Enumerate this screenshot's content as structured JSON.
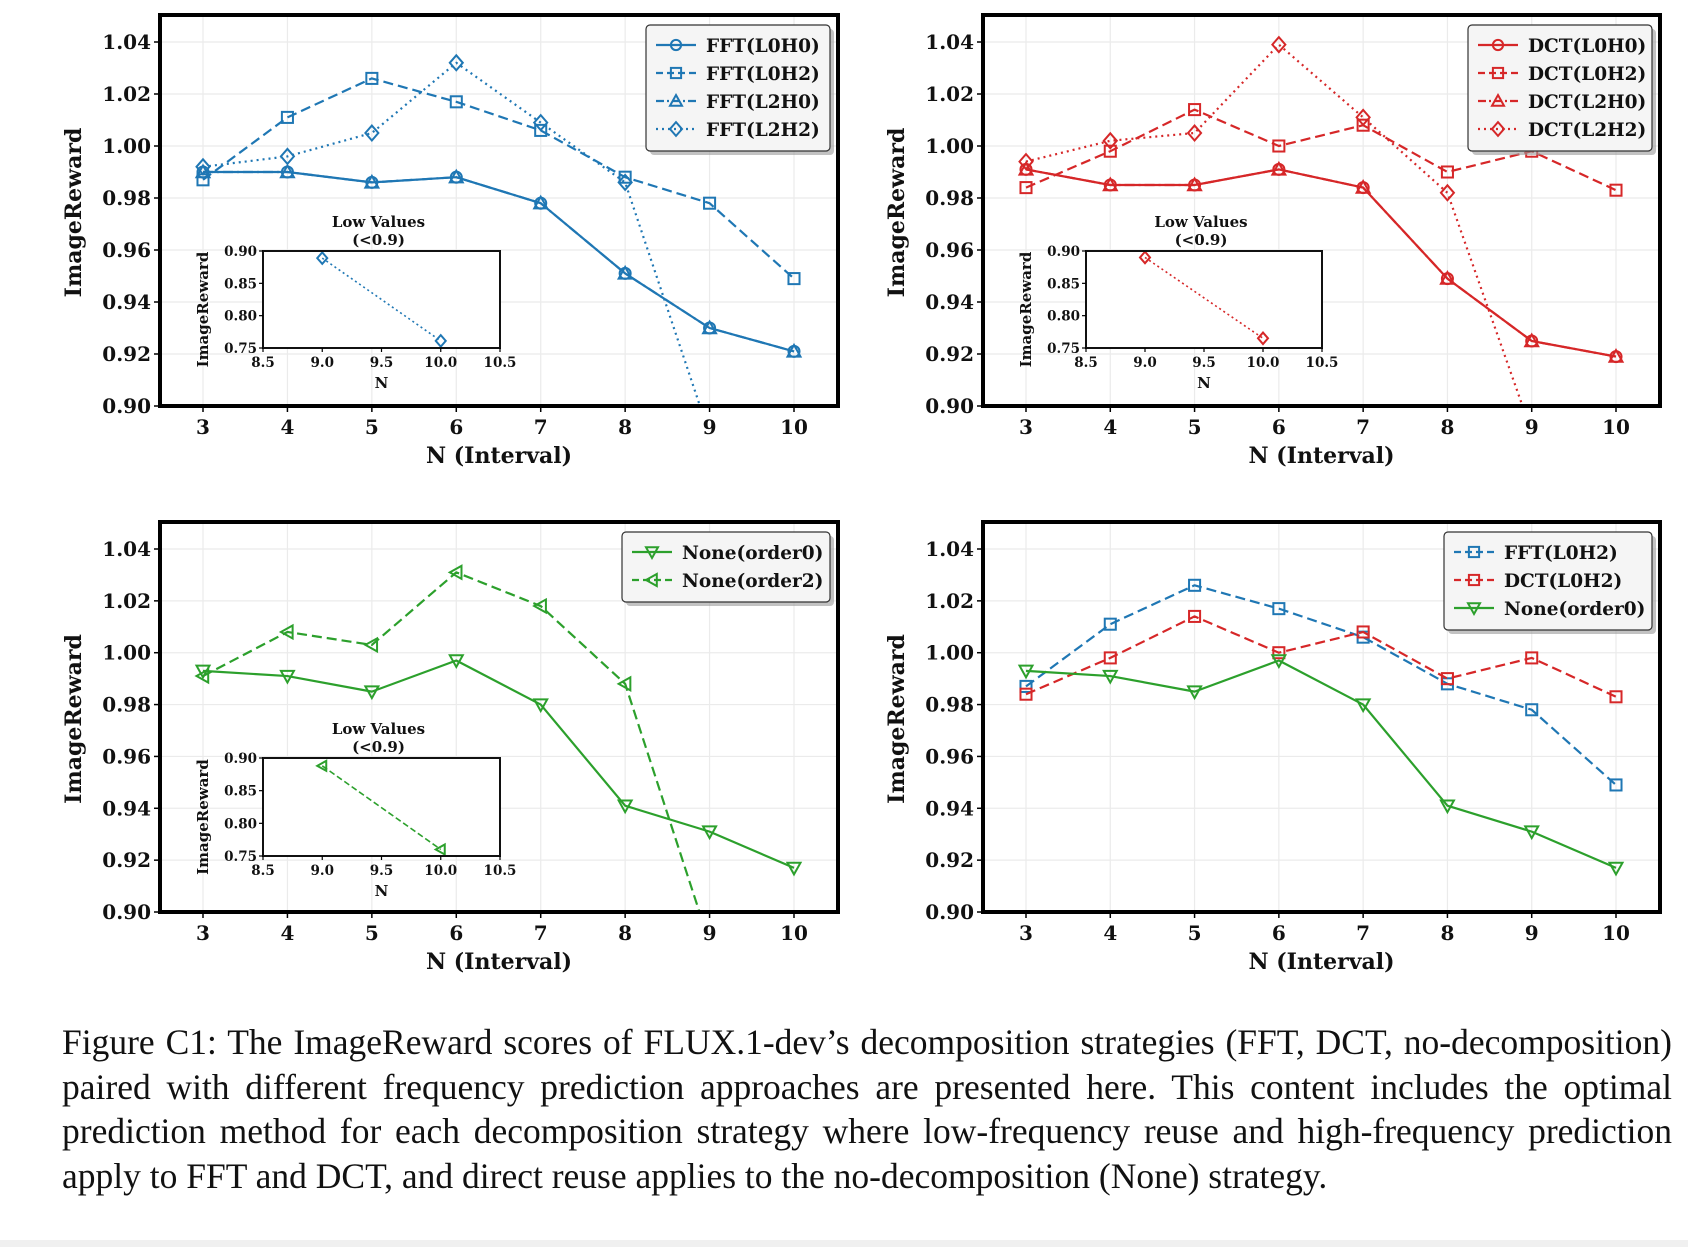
{
  "caption": "Figure C1: The ImageReward scores of FLUX.1-dev’s decomposition strategies (FFT, DCT, no-decomposition) paired with different frequency prediction approaches are presented here.  This content includes the optimal prediction method for each decomposition strategy where low-frequency reuse and high-frequency prediction apply to FFT and DCT, and direct reuse applies to the no-decomposition (None) strategy.",
  "colors": {
    "fft": "#1f77b4",
    "dct": "#d62728",
    "none": "#2ca02c"
  },
  "chart_data": [
    {
      "id": "fft",
      "type": "line",
      "xlabel": "N (Interval)",
      "ylabel": "ImageReward",
      "x": [
        3,
        4,
        5,
        6,
        7,
        8,
        9,
        10
      ],
      "xticks": [
        "3",
        "4",
        "5",
        "6",
        "7",
        "8",
        "9",
        "10"
      ],
      "ylim": [
        0.9,
        1.05
      ],
      "yticks": [
        "0.90",
        "0.92",
        "0.94",
        "0.96",
        "0.98",
        "1.00",
        "1.02",
        "1.04"
      ],
      "grid": true,
      "legend_position": "top-right",
      "series": [
        {
          "name": "FFT(L0H0)",
          "color": "#1f77b4",
          "linestyle": "solid",
          "marker": "circle",
          "values": [
            0.99,
            0.99,
            0.986,
            0.988,
            0.978,
            0.951,
            0.93,
            0.921
          ]
        },
        {
          "name": "FFT(L0H2)",
          "color": "#1f77b4",
          "linestyle": "dashed",
          "marker": "square",
          "values": [
            0.987,
            1.011,
            1.026,
            1.017,
            1.006,
            0.988,
            0.978,
            0.949
          ]
        },
        {
          "name": "FFT(L2H0)",
          "color": "#1f77b4",
          "linestyle": "dashdot",
          "marker": "triangle-up",
          "values": [
            0.99,
            0.99,
            0.986,
            0.988,
            0.978,
            0.951,
            0.93,
            0.921
          ]
        },
        {
          "name": "FFT(L2H2)",
          "color": "#1f77b4",
          "linestyle": "dotted",
          "marker": "diamond",
          "values": [
            0.992,
            0.996,
            1.005,
            1.032,
            1.009,
            0.986,
            0.889,
            0.761
          ]
        }
      ],
      "inset": {
        "title": "Low Values",
        "subtitle": "(<0.9)",
        "xlabel": "N",
        "ylabel": "ImageReward",
        "xlim": [
          8.5,
          10.5
        ],
        "ylim": [
          0.75,
          0.9
        ],
        "xticks": [
          "8.5",
          "9.0",
          "9.5",
          "10.0",
          "10.5"
        ],
        "yticks": [
          "0.75",
          "0.80",
          "0.85",
          "0.90"
        ],
        "series": {
          "name": "FFT(L2H2)",
          "color": "#1f77b4",
          "linestyle": "dotted",
          "marker": "diamond",
          "x": [
            9,
            10
          ],
          "values": [
            0.889,
            0.761
          ]
        }
      }
    },
    {
      "id": "dct",
      "type": "line",
      "xlabel": "N (Interval)",
      "ylabel": "ImageReward",
      "x": [
        3,
        4,
        5,
        6,
        7,
        8,
        9,
        10
      ],
      "xticks": [
        "3",
        "4",
        "5",
        "6",
        "7",
        "8",
        "9",
        "10"
      ],
      "ylim": [
        0.9,
        1.05
      ],
      "yticks": [
        "0.90",
        "0.92",
        "0.94",
        "0.96",
        "0.98",
        "1.00",
        "1.02",
        "1.04"
      ],
      "grid": true,
      "legend_position": "top-right",
      "series": [
        {
          "name": "DCT(L0H0)",
          "color": "#d62728",
          "linestyle": "solid",
          "marker": "circle",
          "values": [
            0.991,
            0.985,
            0.985,
            0.991,
            0.984,
            0.949,
            0.925,
            0.919
          ]
        },
        {
          "name": "DCT(L0H2)",
          "color": "#d62728",
          "linestyle": "dashed",
          "marker": "square",
          "values": [
            0.984,
            0.998,
            1.014,
            1.0,
            1.008,
            0.99,
            0.998,
            0.983
          ]
        },
        {
          "name": "DCT(L2H0)",
          "color": "#d62728",
          "linestyle": "dashdot",
          "marker": "triangle-up",
          "values": [
            0.991,
            0.985,
            0.985,
            0.991,
            0.984,
            0.949,
            0.925,
            0.919
          ]
        },
        {
          "name": "DCT(L2H2)",
          "color": "#d62728",
          "linestyle": "dotted",
          "marker": "diamond",
          "values": [
            0.994,
            1.002,
            1.005,
            1.039,
            1.011,
            0.982,
            0.89,
            0.765
          ]
        }
      ],
      "inset": {
        "title": "Low Values",
        "subtitle": "(<0.9)",
        "xlabel": "N",
        "ylabel": "ImageReward",
        "xlim": [
          8.5,
          10.5
        ],
        "ylim": [
          0.75,
          0.9
        ],
        "xticks": [
          "8.5",
          "9.0",
          "9.5",
          "10.0",
          "10.5"
        ],
        "yticks": [
          "0.75",
          "0.80",
          "0.85",
          "0.90"
        ],
        "series": {
          "name": "DCT(L2H2)",
          "color": "#d62728",
          "linestyle": "dotted",
          "marker": "diamond",
          "x": [
            9,
            10
          ],
          "values": [
            0.89,
            0.765
          ]
        }
      }
    },
    {
      "id": "none",
      "type": "line",
      "xlabel": "N (Interval)",
      "ylabel": "ImageReward",
      "x": [
        3,
        4,
        5,
        6,
        7,
        8,
        9,
        10
      ],
      "xticks": [
        "3",
        "4",
        "5",
        "6",
        "7",
        "8",
        "9",
        "10"
      ],
      "ylim": [
        0.9,
        1.05
      ],
      "yticks": [
        "0.90",
        "0.92",
        "0.94",
        "0.96",
        "0.98",
        "1.00",
        "1.02",
        "1.04"
      ],
      "grid": true,
      "legend_position": "top-right",
      "series": [
        {
          "name": "None(order0)",
          "color": "#2ca02c",
          "linestyle": "solid",
          "marker": "triangle-down",
          "values": [
            0.993,
            0.991,
            0.985,
            0.997,
            0.98,
            0.941,
            0.931,
            0.917
          ]
        },
        {
          "name": "None(order2)",
          "color": "#2ca02c",
          "linestyle": "dashed",
          "marker": "triangle-left",
          "values": [
            0.991,
            1.008,
            1.003,
            1.031,
            1.018,
            0.988,
            0.888,
            0.76
          ]
        }
      ],
      "inset": {
        "title": "Low Values",
        "subtitle": "(<0.9)",
        "xlabel": "N",
        "ylabel": "ImageReward",
        "xlim": [
          8.5,
          10.5
        ],
        "ylim": [
          0.75,
          0.9
        ],
        "xticks": [
          "8.5",
          "9.0",
          "9.5",
          "10.0",
          "10.5"
        ],
        "yticks": [
          "0.75",
          "0.80",
          "0.85",
          "0.90"
        ],
        "series": {
          "name": "None(order2)",
          "color": "#2ca02c",
          "linestyle": "dashed",
          "marker": "triangle-left",
          "x": [
            9,
            10
          ],
          "values": [
            0.888,
            0.76
          ]
        }
      }
    },
    {
      "id": "compare",
      "type": "line",
      "xlabel": "N (Interval)",
      "ylabel": "ImageReward",
      "x": [
        3,
        4,
        5,
        6,
        7,
        8,
        9,
        10
      ],
      "xticks": [
        "3",
        "4",
        "5",
        "6",
        "7",
        "8",
        "9",
        "10"
      ],
      "ylim": [
        0.9,
        1.05
      ],
      "yticks": [
        "0.90",
        "0.92",
        "0.94",
        "0.96",
        "0.98",
        "1.00",
        "1.02",
        "1.04"
      ],
      "grid": true,
      "legend_position": "top-right",
      "series": [
        {
          "name": "FFT(L0H2)",
          "color": "#1f77b4",
          "linestyle": "dashed",
          "marker": "square",
          "values": [
            0.987,
            1.011,
            1.026,
            1.017,
            1.006,
            0.988,
            0.978,
            0.949
          ]
        },
        {
          "name": "DCT(L0H2)",
          "color": "#d62728",
          "linestyle": "dashed",
          "marker": "square",
          "values": [
            0.984,
            0.998,
            1.014,
            1.0,
            1.008,
            0.99,
            0.998,
            0.983
          ]
        },
        {
          "name": "None(order0)",
          "color": "#2ca02c",
          "linestyle": "solid",
          "marker": "triangle-down",
          "values": [
            0.993,
            0.991,
            0.985,
            0.997,
            0.98,
            0.941,
            0.931,
            0.917
          ]
        }
      ]
    }
  ]
}
